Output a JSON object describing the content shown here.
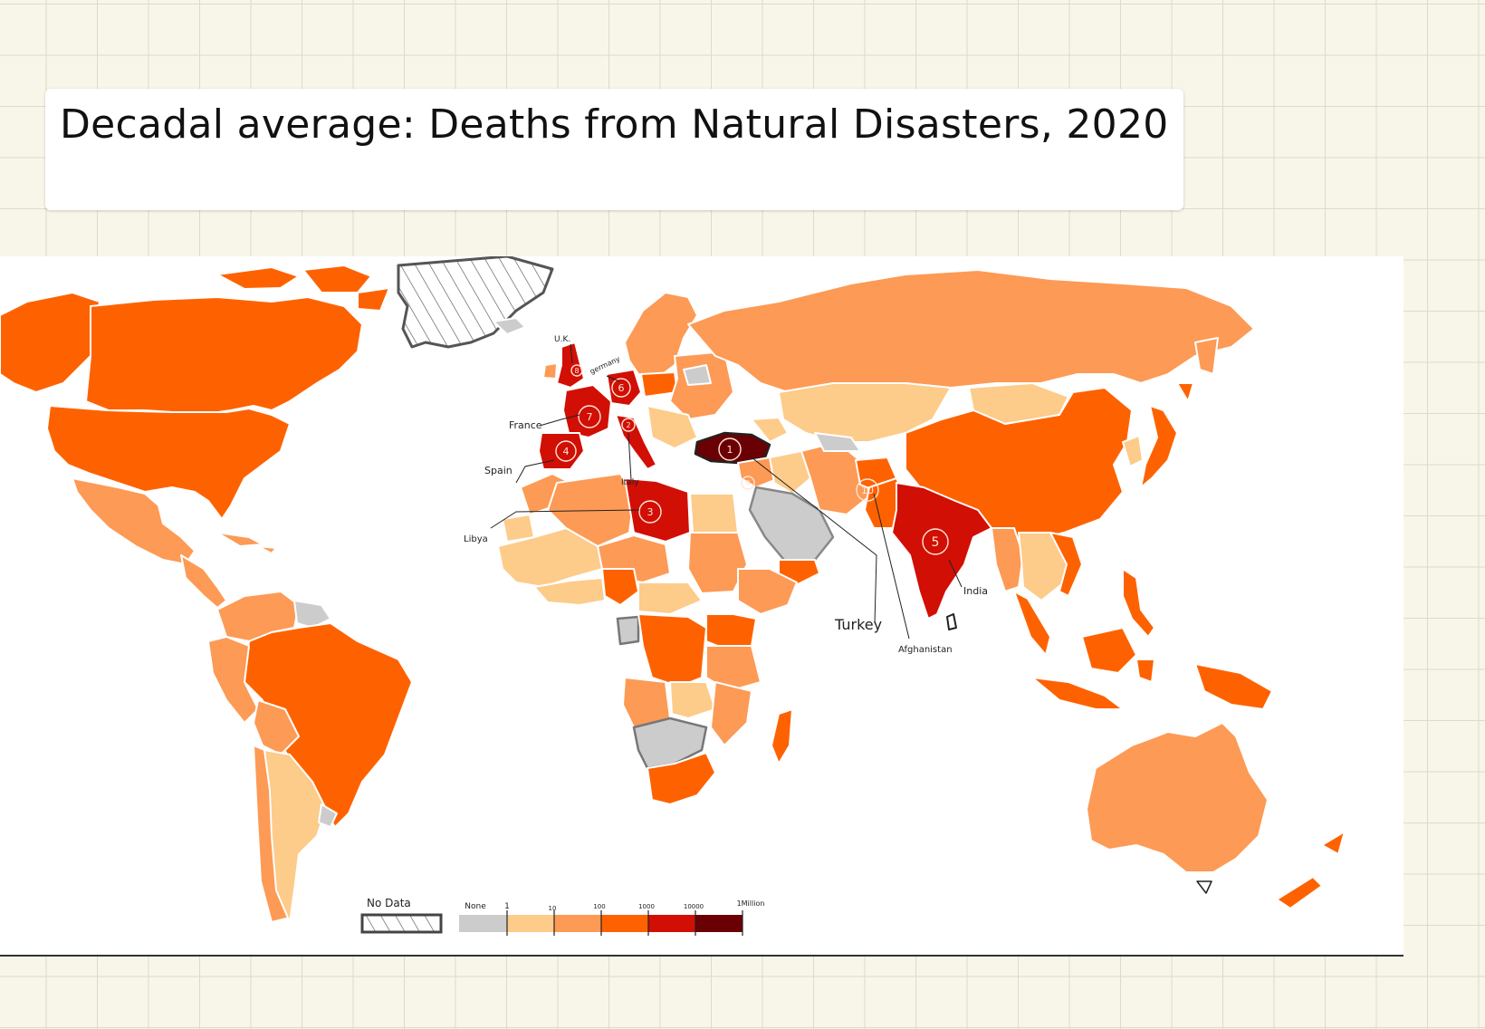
{
  "title": "Decadal average: Deaths from Natural  Disasters, 2020",
  "colors": {
    "no_data": "hatched",
    "none": "#cccccc",
    "c1_10": "#fdcb8a",
    "c10_100": "#fd9a55",
    "c100_1000": "#fe6200",
    "c1000_10000": "#d10f05",
    "c10000_1m": "#6b0004"
  },
  "legend": {
    "no_data_label": "No Data",
    "tick_labels": [
      "None",
      "1",
      "10",
      "100",
      "1000",
      "10000",
      "1Million"
    ]
  },
  "callouts": [
    {
      "rank": "1",
      "country": "Turkey"
    },
    {
      "rank": "2",
      "country": "Italy"
    },
    {
      "rank": "3",
      "country": "Libya"
    },
    {
      "rank": "4",
      "country": "Spain"
    },
    {
      "rank": "5",
      "country": "India"
    },
    {
      "rank": "6",
      "country": "Germany"
    },
    {
      "rank": "7",
      "country": "France"
    },
    {
      "rank": "8",
      "country": "U.K."
    },
    {
      "rank": "9",
      "country": ""
    },
    {
      "rank": "10",
      "country": "Afghanistan"
    }
  ],
  "country_labels": {
    "uk": "U.K.",
    "germany": "germany",
    "france": "France",
    "spain": "Spain",
    "italy": "Italy",
    "libya": "Libya",
    "turkey": "Turkey",
    "afghanistan": "Afghanistan",
    "india": "India"
  }
}
